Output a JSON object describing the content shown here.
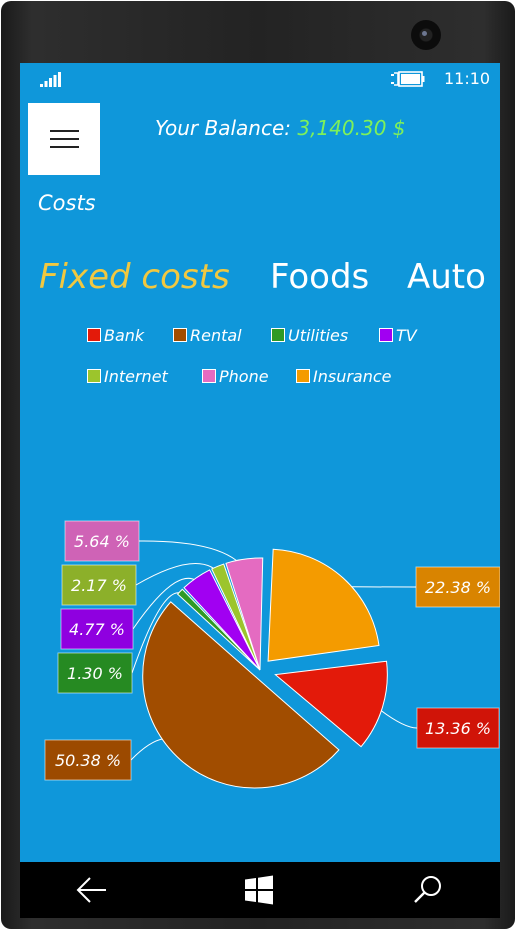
{
  "status_bar": {
    "time": "11:10",
    "signal_icon": "signal-bars-icon",
    "battery_icon": "battery-charging-icon"
  },
  "header": {
    "menu_icon": "hamburger-menu-icon",
    "balance_label": "Your Balance: ",
    "balance_value": "3,140.30 $",
    "balance_value_color": "#7ef15a"
  },
  "page_title": "Costs",
  "tabs": [
    {
      "label": "Fixed costs",
      "active": true,
      "color": "#f1c840"
    },
    {
      "label": "Foods",
      "active": false
    },
    {
      "label": "Auto",
      "active": false
    }
  ],
  "legend": [
    {
      "label": "Bank",
      "color": "#e31a0a"
    },
    {
      "label": "Rental",
      "color": "#a14d00"
    },
    {
      "label": "Utilities",
      "color": "#2f9a26"
    },
    {
      "label": "TV",
      "color": "#a100f2"
    },
    {
      "label": "Internet",
      "color": "#9cc52c"
    },
    {
      "label": "Phone",
      "color": "#e46bc1"
    },
    {
      "label": "Insurance",
      "color": "#f49b00"
    }
  ],
  "chart_data": {
    "type": "pie",
    "slices": [
      {
        "label": "Insurance",
        "value": 22.38,
        "display": "22.38 %",
        "color": "#f49b00",
        "label_bg": "#d98400"
      },
      {
        "label": "Bank",
        "value": 13.36,
        "display": "13.36 %",
        "color": "#e31a0a",
        "label_bg": "#d01408"
      },
      {
        "label": "Rental",
        "value": 50.38,
        "display": "50.38 %",
        "color": "#a14d00",
        "label_bg": "#9c4a00"
      },
      {
        "label": "Utilities",
        "value": 1.3,
        "display": "1.30 %",
        "color": "#2f9a26",
        "label_bg": "#268a22"
      },
      {
        "label": "TV",
        "value": 4.77,
        "display": "4.77 %",
        "color": "#a100f2",
        "label_bg": "#8f00e0"
      },
      {
        "label": "Internet",
        "value": 2.17,
        "display": "2.17 %",
        "color": "#9cc52c",
        "label_bg": "#8cb02a"
      },
      {
        "label": "Phone",
        "value": 5.64,
        "display": "5.64 %",
        "color": "#e46bc1",
        "label_bg": "#cf63b6"
      }
    ]
  },
  "nav_bar": {
    "back_icon": "back-arrow-icon",
    "home_icon": "windows-start-icon",
    "search_icon": "search-icon"
  }
}
